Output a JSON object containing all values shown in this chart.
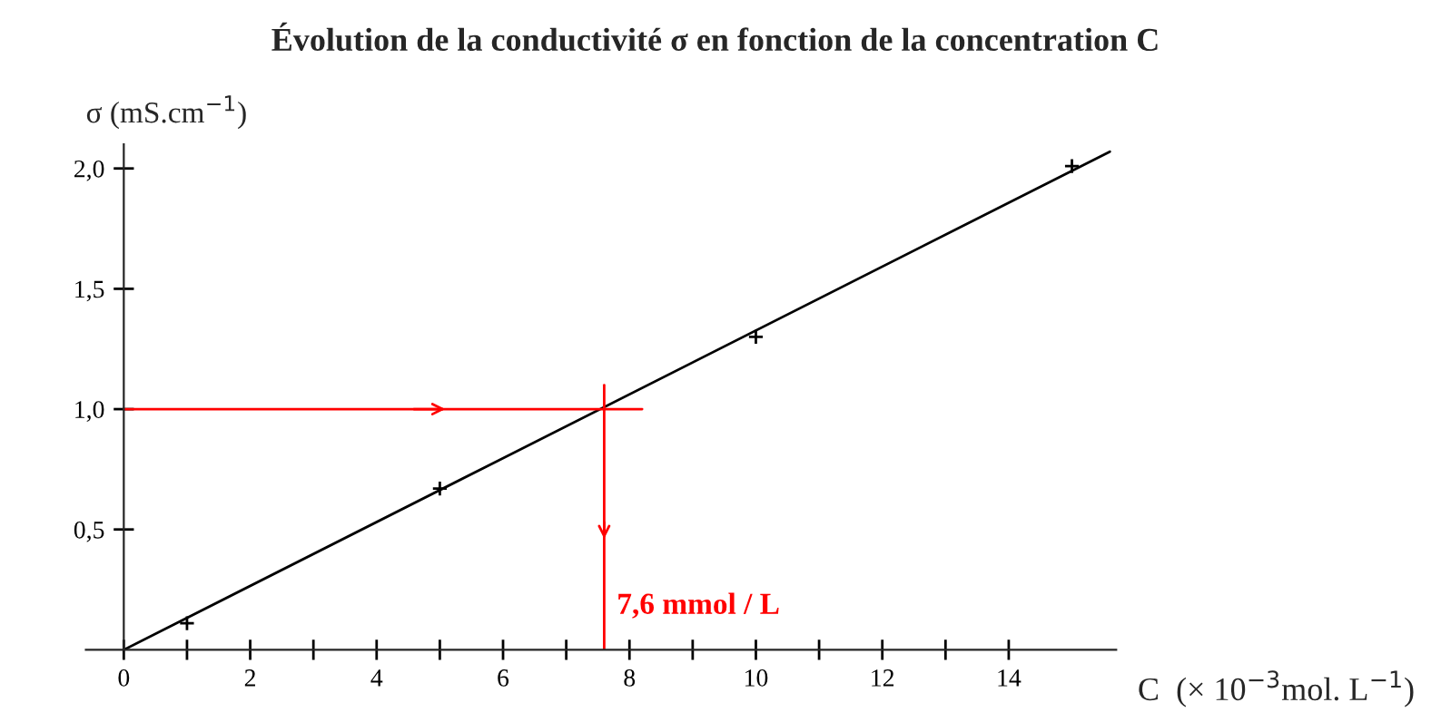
{
  "chart_data": {
    "type": "scatter",
    "title": "Évolution de la conductivité σ en fonction de la concentration C",
    "xlabel": "C  (× 10$^{−3}$mol. L$^{−1}$)",
    "ylabel": "σ (mS.cm$^{−1}$)",
    "x": [
      1,
      5,
      10,
      15
    ],
    "series": [
      {
        "color": "#000000",
        "marker": "cross",
        "values": [
          0.11,
          0.67,
          1.3,
          2.01
        ]
      },
      {
        "type": "line",
        "color": "#000000",
        "marker": "none",
        "line_style": "solid",
        "x": [
          0,
          15.6
        ],
        "values": [
          0,
          2.07
        ]
      }
    ],
    "xlim": [
      -0.6,
      15.7
    ],
    "ylim": [
      0,
      2.1
    ],
    "xticks": [
      0,
      {
        "value": 1,
        "label": null
      },
      2,
      {
        "value": 3,
        "label": null
      },
      4,
      {
        "value": 5,
        "label": null
      },
      6,
      {
        "value": 7,
        "label": null
      },
      8,
      {
        "value": 9,
        "label": null
      },
      10,
      {
        "value": 11,
        "label": null
      },
      12,
      {
        "value": 13,
        "label": null
      },
      14
    ],
    "yticks": [
      {
        "value": 0.5,
        "label": "0,5"
      },
      {
        "value": 1.0,
        "label": "1,0"
      },
      {
        "value": 1.5,
        "label": "1,5"
      },
      {
        "value": 2.0,
        "label": "2,0"
      }
    ],
    "ref_lines": [
      {
        "axis": "y",
        "value": 1.0,
        "label": null,
        "color": "#ff0000",
        "line_style": "solid"
      },
      {
        "axis": "x",
        "value": 7.6,
        "label": "7,6 mmol / L",
        "color": "#ff0000",
        "line_style": "solid"
      }
    ],
    "grid": false,
    "legend": false
  }
}
